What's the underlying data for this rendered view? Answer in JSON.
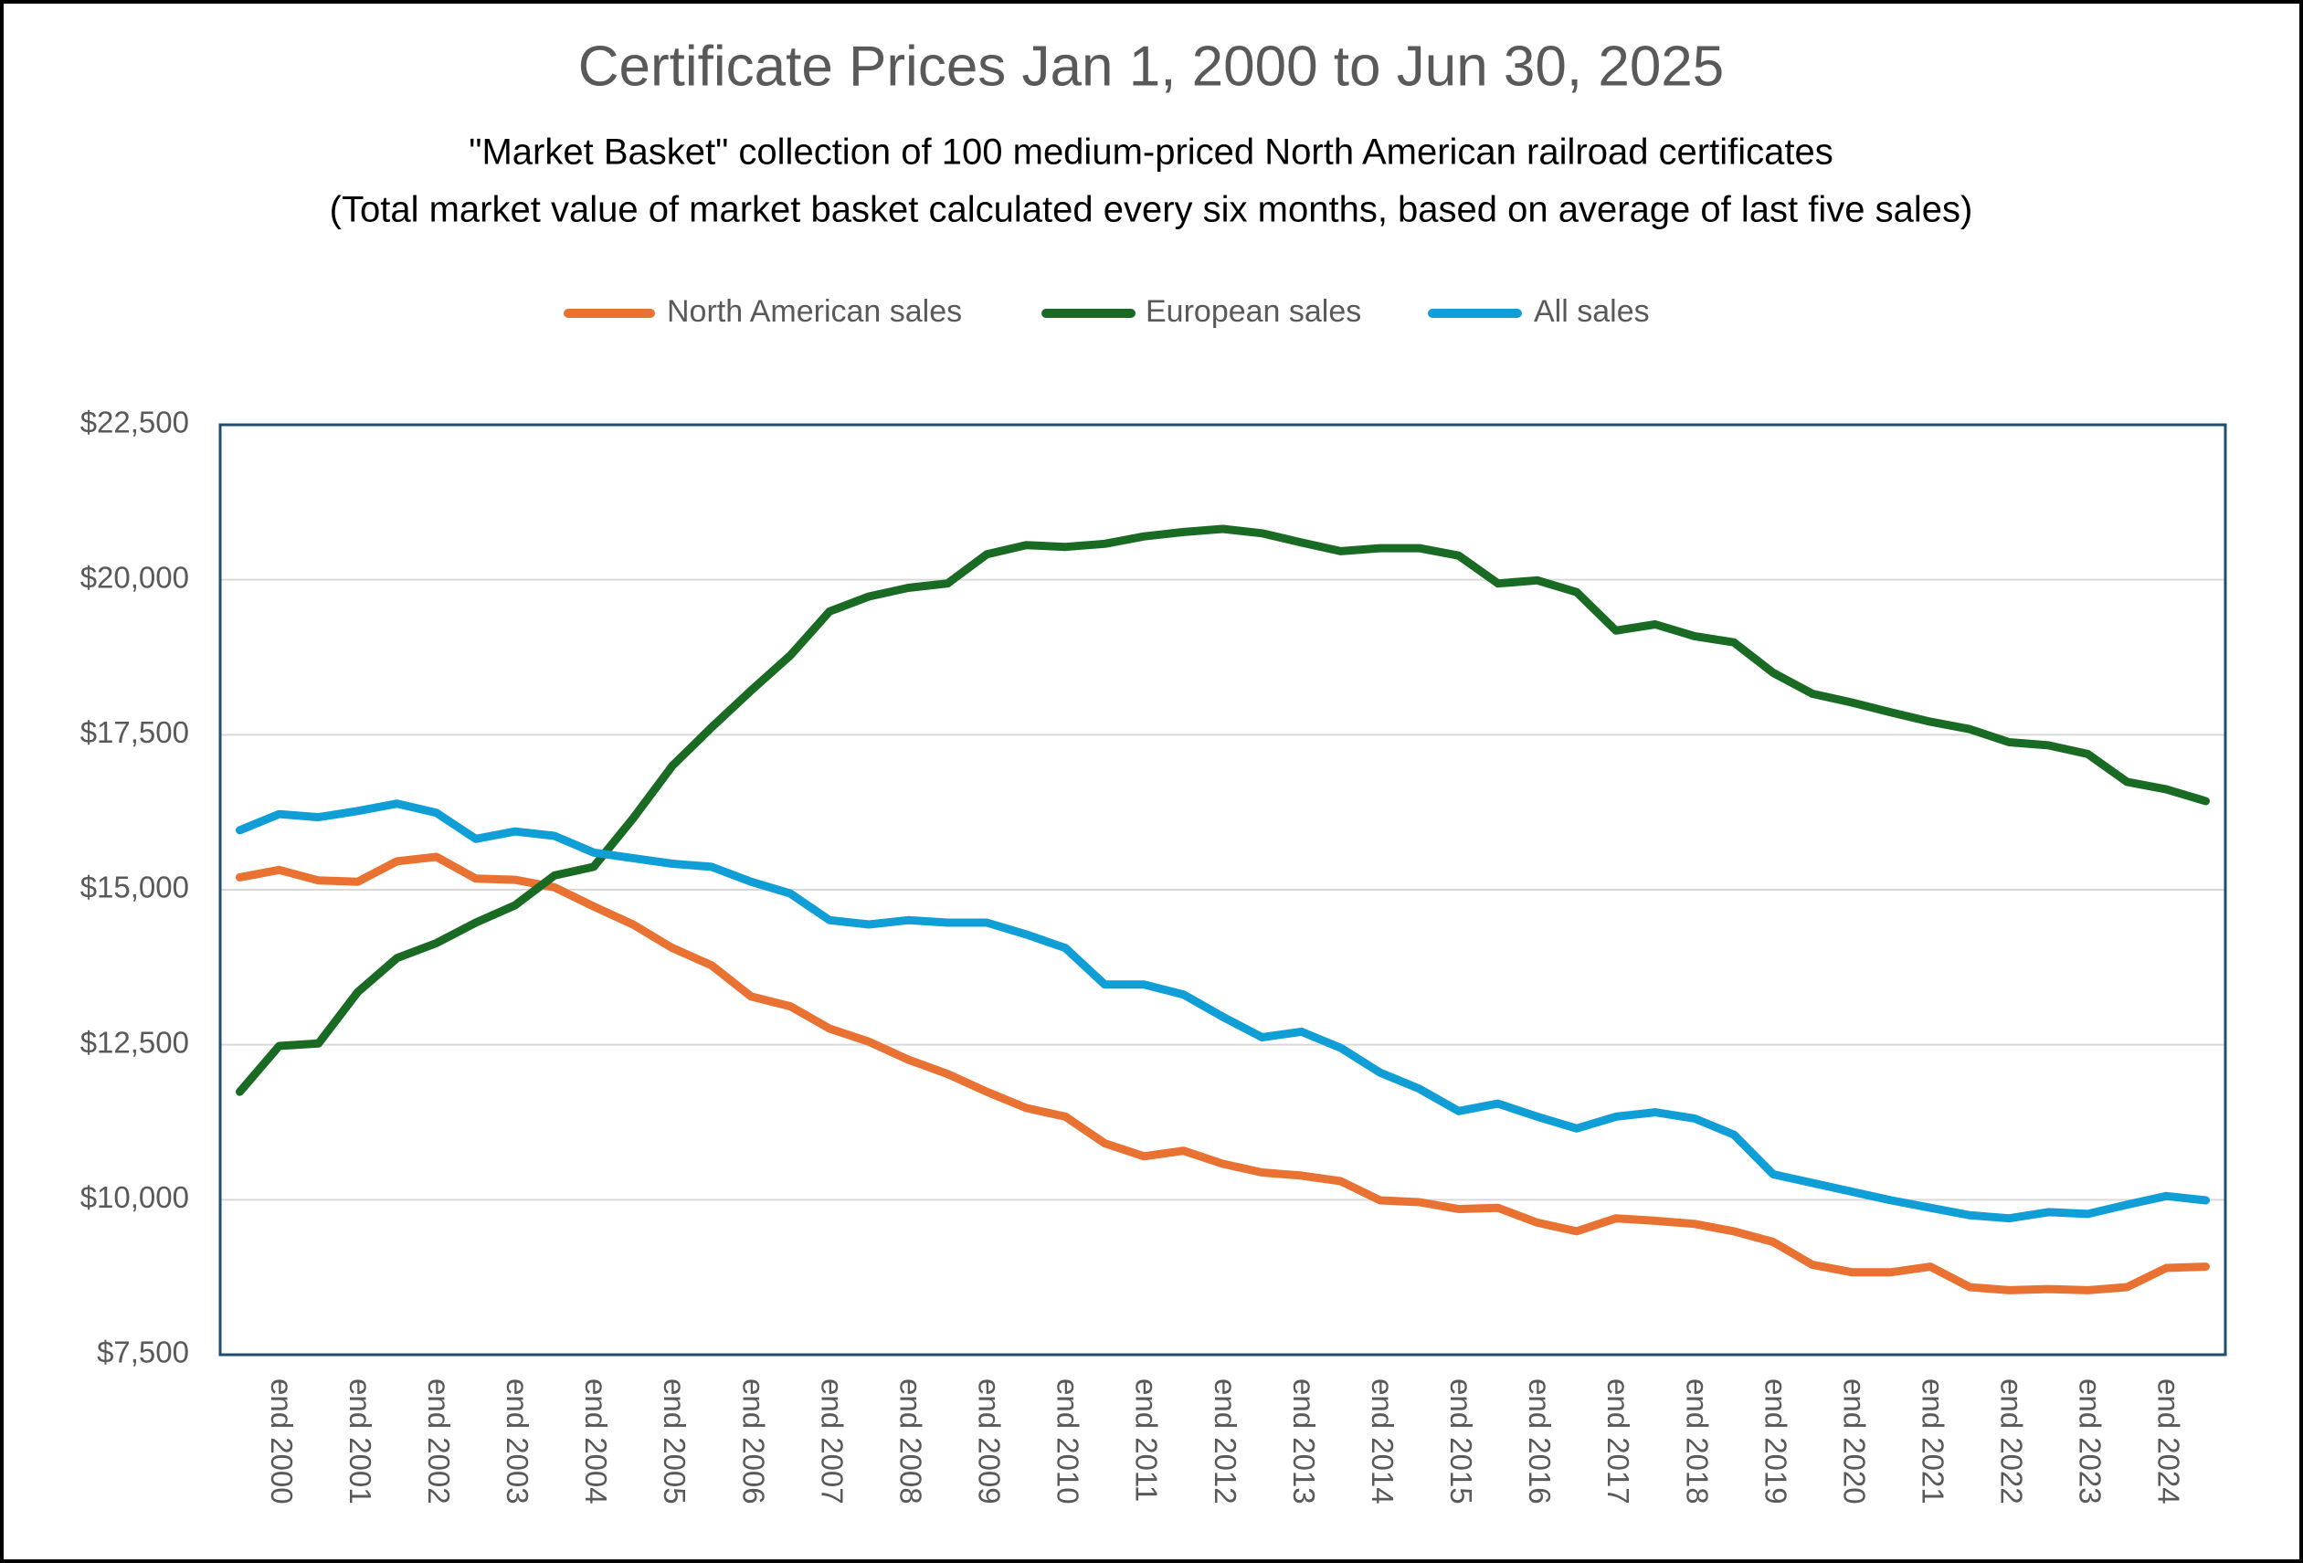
{
  "chart_data": {
    "type": "line",
    "title": "Certificate Prices Jan 1, 2000 to Jun 30, 2025",
    "subtitle": [
      "\"Market Basket\" collection of 100 medium-priced North American railroad certificates",
      "(Total market value of market basket calculated every six months, based on average of last five sales)"
    ],
    "categories": [
      null,
      "end 2000",
      null,
      "end 2001",
      null,
      "end 2002",
      null,
      "end 2003",
      null,
      "end 2004",
      null,
      "end 2005",
      null,
      "end 2006",
      null,
      "end 2007",
      null,
      "end 2008",
      null,
      "end 2009",
      null,
      "end 2010",
      null,
      "end 2011",
      null,
      "end 2012",
      null,
      "end 2013",
      null,
      "end 2014",
      null,
      "end 2015",
      null,
      "end 2016",
      null,
      "end 2017",
      null,
      "end 2018",
      null,
      "end 2019",
      null,
      "end 2020",
      null,
      "end 2021",
      null,
      "end 2022",
      null,
      "end 2023",
      null,
      "end 2024",
      null
    ],
    "series": [
      {
        "name": "North American sales",
        "color": "#e97132",
        "values": [
          15200,
          15320,
          15150,
          15130,
          15460,
          15530,
          15180,
          15160,
          15040,
          14730,
          14440,
          14060,
          13780,
          13280,
          13120,
          12760,
          12550,
          12260,
          12030,
          11740,
          11480,
          11340,
          10910,
          10700,
          10790,
          10580,
          10440,
          10390,
          10300,
          9990,
          9960,
          9850,
          9870,
          9630,
          9490,
          9700,
          9660,
          9610,
          9490,
          9320,
          8950,
          8830,
          8830,
          8920,
          8590,
          8540,
          8560,
          8540,
          8590,
          8900,
          8920
        ]
      },
      {
        "name": "European sales",
        "color": "#196b24",
        "values": [
          11740,
          12480,
          12520,
          13350,
          13900,
          14140,
          14470,
          14750,
          15230,
          15370,
          16150,
          17000,
          17620,
          18210,
          18780,
          19490,
          19730,
          19870,
          19940,
          20410,
          20560,
          20530,
          20580,
          20700,
          20770,
          20820,
          20750,
          20600,
          20460,
          20510,
          20510,
          20390,
          19940,
          19990,
          19800,
          19180,
          19280,
          19090,
          18990,
          18500,
          18160,
          18020,
          17860,
          17710,
          17590,
          17380,
          17330,
          17190,
          16740,
          16620,
          16430
        ]
      },
      {
        "name": "All sales",
        "color": "#0f9ed5",
        "values": [
          15960,
          16220,
          16170,
          16270,
          16390,
          16240,
          15820,
          15940,
          15870,
          15600,
          15510,
          15420,
          15370,
          15130,
          14940,
          14510,
          14440,
          14510,
          14470,
          14470,
          14280,
          14060,
          13470,
          13470,
          13310,
          12950,
          12620,
          12710,
          12450,
          12050,
          11790,
          11430,
          11550,
          11340,
          11150,
          11340,
          11410,
          11310,
          11050,
          10410,
          10270,
          10130,
          9990,
          9870,
          9750,
          9700,
          9800,
          9770,
          9920,
          10060,
          9990
        ]
      }
    ],
    "ylim": [
      7500,
      22500
    ],
    "yticks": [
      {
        "value": 7500,
        "label": "$7,500"
      },
      {
        "value": 10000,
        "label": "$10,000"
      },
      {
        "value": 12500,
        "label": "$12,500"
      },
      {
        "value": 15000,
        "label": "$15,000"
      },
      {
        "value": 17500,
        "label": "$17,500"
      },
      {
        "value": 20000,
        "label": "$20,000"
      },
      {
        "value": 22500,
        "label": "$22,500"
      }
    ],
    "grid": true,
    "legend": "top"
  }
}
